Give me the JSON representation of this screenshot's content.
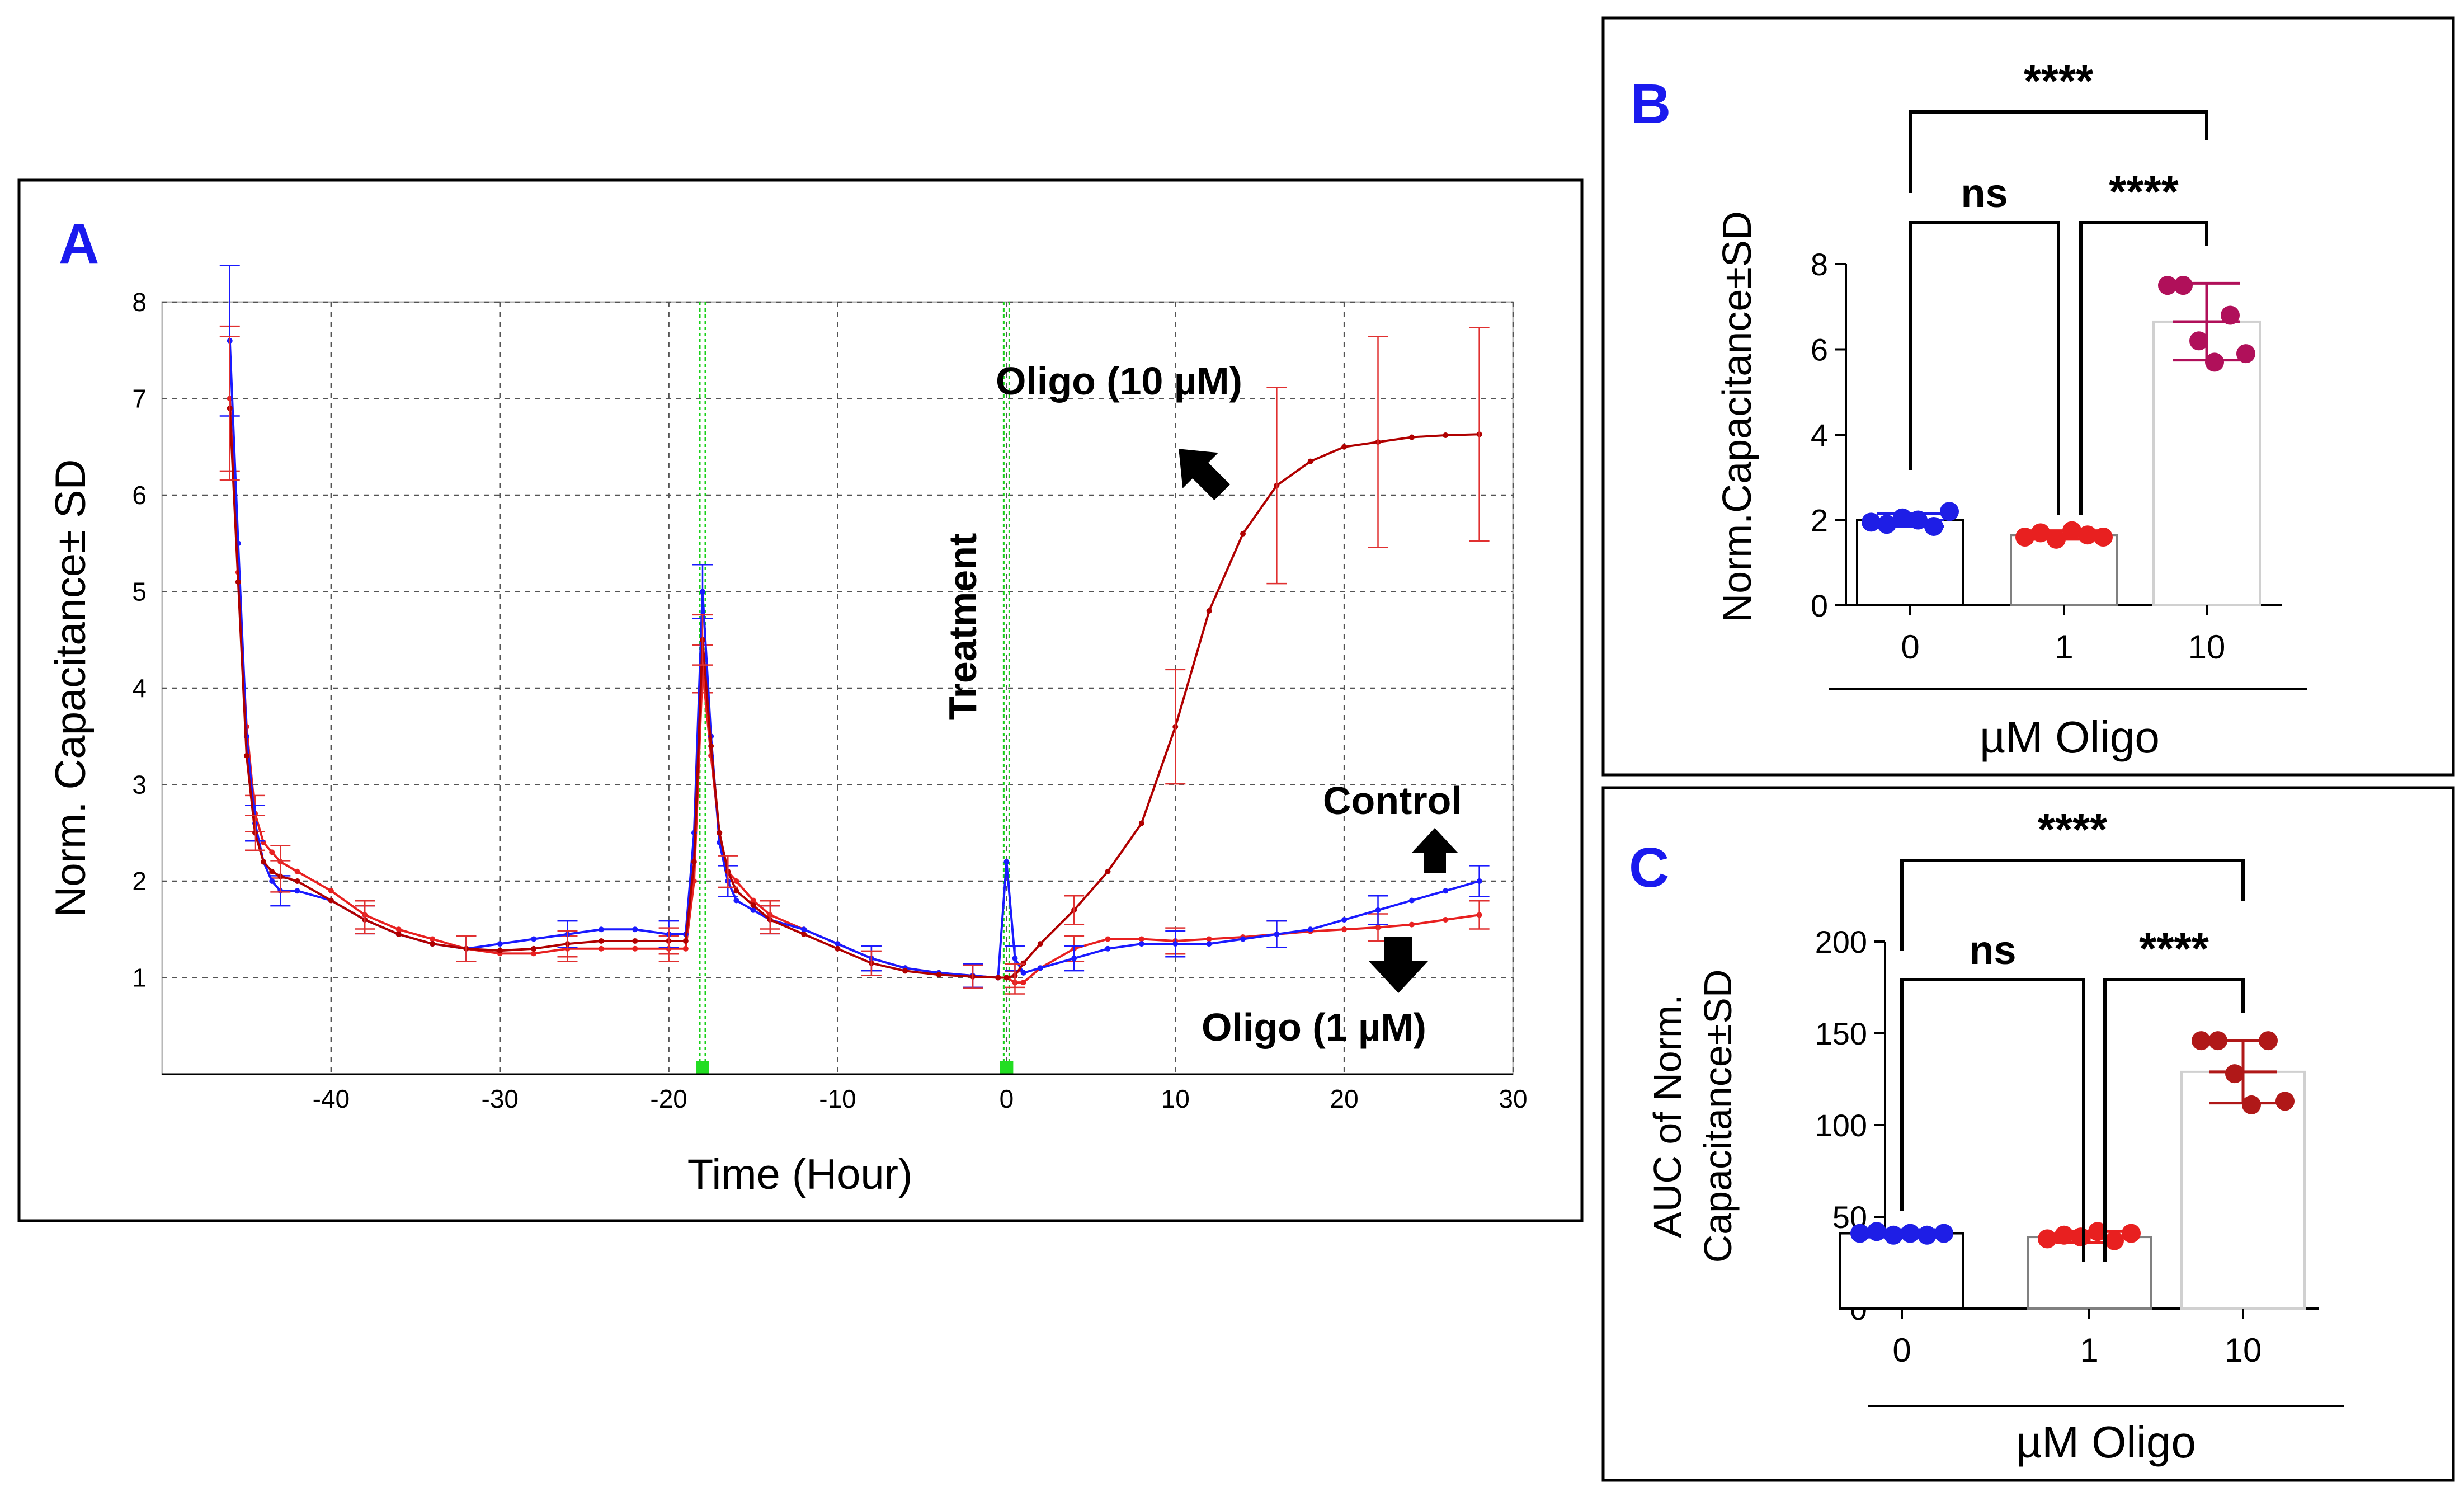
{
  "chart_data": [
    {
      "panel": "A",
      "type": "line",
      "xlabel": "Time (Hour)",
      "ylabel": "Norm. Capacitance± SD",
      "xlim": [
        -50,
        30
      ],
      "ylim": [
        0,
        8
      ],
      "xticks": [
        -40,
        -30,
        -20,
        -10,
        0,
        10,
        20,
        30
      ],
      "yticks": [
        1,
        2,
        3,
        4,
        5,
        6,
        7,
        8
      ],
      "grid": true,
      "vlines": [
        -18,
        0
      ],
      "series": [
        {
          "name": "Control",
          "color": "#1a1aff",
          "x": [
            -46,
            -45.5,
            -45,
            -44.5,
            -44,
            -43.5,
            -43,
            -42,
            -40,
            -38,
            -36,
            -34,
            -32,
            -30,
            -28,
            -26,
            -24,
            -22,
            -20,
            -19,
            -18.5,
            -18,
            -17.5,
            -17,
            -16.5,
            -16,
            -15,
            -14,
            -12,
            -10,
            -8,
            -6,
            -4,
            -2,
            -0.5,
            0,
            0.5,
            1,
            2,
            4,
            6,
            8,
            10,
            12,
            14,
            16,
            18,
            20,
            22,
            24,
            26,
            28
          ],
          "y": [
            7.6,
            5.5,
            3.5,
            2.6,
            2.2,
            2.0,
            1.9,
            1.9,
            1.8,
            1.6,
            1.45,
            1.35,
            1.3,
            1.35,
            1.4,
            1.45,
            1.5,
            1.5,
            1.45,
            1.45,
            2.5,
            5.0,
            3.5,
            2.4,
            2.0,
            1.8,
            1.7,
            1.6,
            1.5,
            1.35,
            1.2,
            1.1,
            1.05,
            1.02,
            1.0,
            2.2,
            1.2,
            1.05,
            1.1,
            1.2,
            1.3,
            1.35,
            1.35,
            1.35,
            1.4,
            1.45,
            1.5,
            1.6,
            1.7,
            1.8,
            1.9,
            2.0
          ]
        },
        {
          "name": "Oligo (1 µM)",
          "color": "#e82020",
          "x": [
            -46,
            -45.5,
            -45,
            -44.5,
            -44,
            -43.5,
            -43,
            -42,
            -40,
            -38,
            -36,
            -34,
            -32,
            -30,
            -28,
            -26,
            -24,
            -22,
            -20,
            -19,
            -18.5,
            -18,
            -17.5,
            -17,
            -16.5,
            -16,
            -15,
            -14,
            -12,
            -10,
            -8,
            -6,
            -4,
            -2,
            -0.5,
            0,
            0.5,
            1,
            2,
            4,
            6,
            8,
            10,
            12,
            14,
            16,
            18,
            20,
            22,
            24,
            26,
            28
          ],
          "y": [
            7.0,
            5.2,
            3.6,
            2.7,
            2.4,
            2.3,
            2.2,
            2.1,
            1.9,
            1.65,
            1.5,
            1.4,
            1.3,
            1.25,
            1.25,
            1.3,
            1.3,
            1.3,
            1.3,
            1.3,
            2.0,
            4.2,
            3.3,
            2.5,
            2.1,
            2.0,
            1.8,
            1.65,
            1.5,
            1.35,
            1.2,
            1.1,
            1.05,
            1.02,
            1.0,
            1.0,
            0.95,
            0.95,
            1.1,
            1.3,
            1.4,
            1.4,
            1.38,
            1.4,
            1.42,
            1.45,
            1.48,
            1.5,
            1.52,
            1.55,
            1.6,
            1.65
          ]
        },
        {
          "name": "Oligo (10 µM)",
          "color": "#b00000",
          "x": [
            -46,
            -45.5,
            -45,
            -44.5,
            -44,
            -43.5,
            -43,
            -42,
            -40,
            -38,
            -36,
            -34,
            -32,
            -30,
            -28,
            -26,
            -24,
            -22,
            -20,
            -19,
            -18.5,
            -18,
            -17.5,
            -17,
            -16.5,
            -16,
            -15,
            -14,
            -12,
            -10,
            -8,
            -6,
            -4,
            -2,
            -0.5,
            0,
            0.5,
            1,
            2,
            4,
            6,
            8,
            10,
            12,
            14,
            16,
            18,
            20,
            22,
            24,
            26,
            28
          ],
          "y": [
            6.9,
            5.1,
            3.3,
            2.5,
            2.2,
            2.1,
            2.05,
            2.0,
            1.8,
            1.6,
            1.45,
            1.35,
            1.3,
            1.28,
            1.3,
            1.35,
            1.38,
            1.38,
            1.38,
            1.38,
            2.2,
            4.5,
            3.4,
            2.5,
            2.1,
            1.9,
            1.75,
            1.6,
            1.45,
            1.3,
            1.15,
            1.07,
            1.03,
            1.01,
            1.0,
            1.0,
            1.02,
            1.15,
            1.35,
            1.7,
            2.1,
            2.6,
            3.6,
            4.8,
            5.6,
            6.1,
            6.35,
            6.5,
            6.55,
            6.6,
            6.62,
            6.63
          ]
        }
      ],
      "annotations": [
        {
          "text": "Treatment"
        },
        {
          "text": "Oligo (10 µM)"
        },
        {
          "text": "Control"
        },
        {
          "text": "Oligo (1 µM)"
        }
      ]
    },
    {
      "panel": "B",
      "type": "bar",
      "xlabel": "µM Oligo",
      "ylabel": "Norm.Capacitance±SD",
      "categories": [
        "0",
        "1",
        "10"
      ],
      "values": [
        2.0,
        1.65,
        6.65
      ],
      "sd": [
        0.15,
        0.1,
        0.9
      ],
      "points": [
        [
          1.95,
          1.9,
          2.05,
          2.0,
          1.85,
          2.2
        ],
        [
          1.6,
          1.7,
          1.55,
          1.75,
          1.65,
          1.6
        ],
        [
          7.5,
          7.5,
          6.2,
          5.7,
          6.8,
          5.9
        ]
      ],
      "colors": [
        "#1e1ee6",
        "#e82020",
        "#b0105a"
      ],
      "ylim": [
        0,
        8
      ],
      "yticks": [
        0,
        2,
        4,
        6,
        8
      ],
      "significance": [
        {
          "pair": [
            "0",
            "10"
          ],
          "label": "****"
        },
        {
          "pair": [
            "0",
            "1"
          ],
          "label": "ns"
        },
        {
          "pair": [
            "1",
            "10"
          ],
          "label": "****"
        }
      ]
    },
    {
      "panel": "C",
      "type": "bar",
      "xlabel": "µM Oligo",
      "ylabel": "AUC of Norm. Capacitance±SD",
      "ylabel_lines": [
        "AUC of Norm.",
        "Capacitance±SD"
      ],
      "categories": [
        "0",
        "1",
        "10"
      ],
      "values": [
        41,
        39,
        129
      ],
      "sd": [
        2,
        3,
        17
      ],
      "points": [
        [
          41,
          42,
          40,
          41,
          40,
          41
        ],
        [
          38,
          40,
          39,
          42,
          37,
          41
        ],
        [
          146,
          146,
          128,
          111,
          146,
          113
        ]
      ],
      "colors": [
        "#1e1ee6",
        "#e82020",
        "#b01818"
      ],
      "ylim": [
        0,
        200
      ],
      "yticks": [
        0,
        50,
        100,
        150,
        200
      ],
      "significance": [
        {
          "pair": [
            "0",
            "10"
          ],
          "label": "****"
        },
        {
          "pair": [
            "0",
            "1"
          ],
          "label": "ns"
        },
        {
          "pair": [
            "1",
            "10"
          ],
          "label": "****"
        }
      ]
    }
  ]
}
